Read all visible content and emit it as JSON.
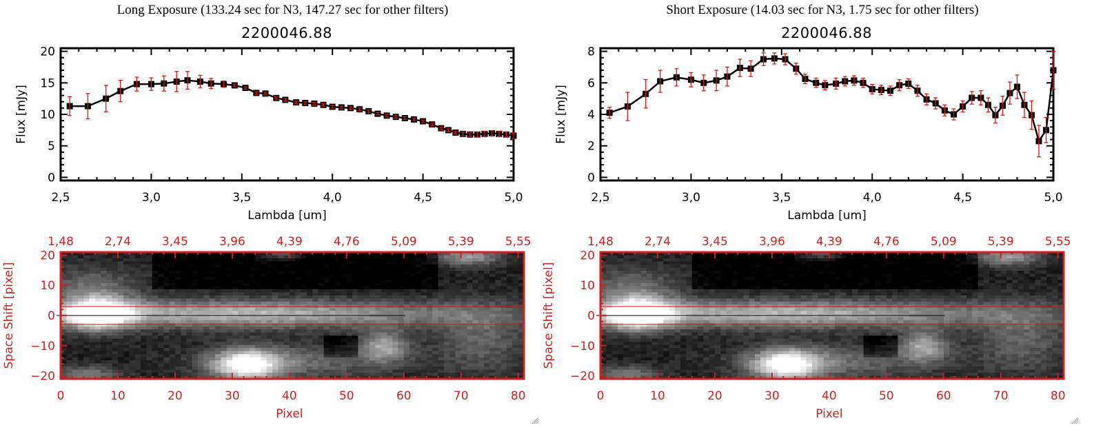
{
  "panels": [
    {
      "title": "Long Exposure (133.24 sec for N3, 147.27 sec for other filters)",
      "plot_title": "2200046.88"
    },
    {
      "title": "Short Exposure (14.03 sec for N3, 1.75 sec for other filters)",
      "plot_title": "2200046.88"
    }
  ],
  "colors": {
    "line": "#000000",
    "errorbar": "#e01010",
    "image_axis": "#cc2222",
    "aperture_line": "#e01010",
    "center_line": "#000000"
  },
  "chart_data": [
    {
      "type": "line",
      "title": "2200046.88",
      "xlabel": "Lambda [um]",
      "ylabel": "Flux [mJy]",
      "xlim": [
        2.5,
        5.0
      ],
      "ylim": [
        -0.5,
        20.5
      ],
      "xticks": [
        "2.5",
        "3.0",
        "3.5",
        "4.0",
        "4.5",
        "5.0"
      ],
      "yticks": [
        "0",
        "5",
        "10",
        "15",
        "20"
      ],
      "grid": false,
      "series": [
        {
          "name": "Long Exposure flux",
          "x": [
            2.55,
            2.65,
            2.75,
            2.83,
            2.92,
            3.0,
            3.07,
            3.14,
            3.2,
            3.27,
            3.33,
            3.4,
            3.46,
            3.52,
            3.58,
            3.63,
            3.69,
            3.74,
            3.8,
            3.85,
            3.9,
            3.95,
            4.0,
            4.05,
            4.1,
            4.15,
            4.2,
            4.25,
            4.3,
            4.35,
            4.4,
            4.45,
            4.5,
            4.55,
            4.6,
            4.64,
            4.68,
            4.72,
            4.76,
            4.8,
            4.84,
            4.88,
            4.92,
            4.96,
            5.0
          ],
          "y": [
            11.3,
            11.3,
            12.5,
            13.7,
            14.8,
            14.8,
            14.9,
            15.2,
            15.4,
            15.2,
            14.9,
            14.8,
            14.6,
            14.2,
            13.4,
            13.3,
            12.6,
            12.3,
            11.9,
            11.8,
            11.7,
            11.5,
            11.2,
            11.1,
            11.0,
            10.8,
            10.5,
            10.1,
            9.8,
            9.6,
            9.4,
            9.2,
            8.9,
            8.4,
            7.8,
            7.5,
            7.1,
            6.9,
            6.8,
            6.8,
            6.9,
            7.0,
            6.9,
            6.8,
            6.6
          ],
          "yerr": [
            1.5,
            2.0,
            2.1,
            1.7,
            1.1,
            1.0,
            1.2,
            1.6,
            1.4,
            1.0,
            0.8,
            0.5,
            0.2,
            0.2,
            0.2,
            0.2,
            0.2,
            0.2,
            0.2,
            0.2,
            0.2,
            0.2,
            0.2,
            0.2,
            0.2,
            0.2,
            0.2,
            0.2,
            0.2,
            0.2,
            0.2,
            0.2,
            0.2,
            0.2,
            0.2,
            0.2,
            0.2,
            0.3,
            0.3,
            0.4,
            0.4,
            0.4,
            0.4,
            0.4,
            0.5
          ]
        }
      ]
    },
    {
      "type": "line",
      "title": "2200046.88",
      "xlabel": "Lambda [um]",
      "ylabel": "Flux [mJy]",
      "xlim": [
        2.5,
        5.0
      ],
      "ylim": [
        -0.2,
        8.2
      ],
      "xticks": [
        "2.5",
        "3.0",
        "3.5",
        "4.0",
        "4.5",
        "5.0"
      ],
      "yticks": [
        "0",
        "2",
        "4",
        "6",
        "8"
      ],
      "grid": false,
      "series": [
        {
          "name": "Short Exposure flux",
          "x": [
            2.55,
            2.65,
            2.75,
            2.83,
            2.92,
            3.0,
            3.07,
            3.14,
            3.2,
            3.27,
            3.33,
            3.4,
            3.46,
            3.52,
            3.58,
            3.63,
            3.69,
            3.74,
            3.8,
            3.85,
            3.9,
            3.95,
            4.0,
            4.05,
            4.1,
            4.15,
            4.2,
            4.25,
            4.3,
            4.35,
            4.4,
            4.45,
            4.5,
            4.55,
            4.6,
            4.64,
            4.68,
            4.72,
            4.76,
            4.8,
            4.84,
            4.88,
            4.92,
            4.96,
            5.0
          ],
          "y": [
            4.1,
            4.5,
            5.3,
            6.1,
            6.35,
            6.2,
            6.0,
            6.15,
            6.4,
            6.95,
            6.9,
            7.5,
            7.55,
            7.5,
            6.9,
            6.25,
            6.0,
            5.85,
            5.95,
            6.1,
            6.15,
            6.0,
            5.6,
            5.55,
            5.5,
            5.85,
            5.95,
            5.5,
            4.95,
            4.7,
            4.25,
            4.0,
            4.5,
            5.05,
            5.05,
            4.6,
            3.95,
            4.55,
            5.35,
            5.75,
            4.6,
            3.95,
            2.3,
            3.0,
            6.8
          ],
          "yerr": [
            0.35,
            0.9,
            0.9,
            0.7,
            0.55,
            0.45,
            0.5,
            0.65,
            0.6,
            0.55,
            0.5,
            0.4,
            0.35,
            0.35,
            0.35,
            0.3,
            0.3,
            0.3,
            0.35,
            0.3,
            0.3,
            0.3,
            0.3,
            0.3,
            0.3,
            0.35,
            0.3,
            0.35,
            0.35,
            0.35,
            0.35,
            0.35,
            0.35,
            0.4,
            0.45,
            0.45,
            0.5,
            0.6,
            0.7,
            0.75,
            0.8,
            0.9,
            1.0,
            0.8,
            1.2
          ]
        }
      ]
    },
    {
      "type": "heatmap",
      "xlabel": "Pixel",
      "ylabel": "Space Shift [pixel]",
      "xlim": [
        0,
        81
      ],
      "ylim": [
        -21,
        21
      ],
      "xticks": [
        "0",
        "10",
        "20",
        "30",
        "40",
        "50",
        "60",
        "70",
        "80"
      ],
      "yticks": [
        "20",
        "10",
        "0",
        "-10",
        "-20"
      ],
      "top_ticks": [
        "1.48",
        "2.74",
        "3.45",
        "3.96",
        "4.39",
        "4.76",
        "5.09",
        "5.39",
        "5.55"
      ],
      "aperture_lines": [
        3,
        -3
      ],
      "center_line": 0,
      "colormap": "grayscale"
    },
    {
      "type": "heatmap",
      "xlabel": "Pixel",
      "ylabel": "Space Shift [pixel]",
      "xlim": [
        0,
        81
      ],
      "ylim": [
        -21,
        21
      ],
      "xticks": [
        "0",
        "10",
        "20",
        "30",
        "40",
        "50",
        "60",
        "70",
        "80"
      ],
      "yticks": [
        "20",
        "10",
        "0",
        "-10",
        "-20"
      ],
      "top_ticks": [
        "1.48",
        "2.74",
        "3.45",
        "3.96",
        "4.39",
        "4.76",
        "5.09",
        "5.39",
        "5.55"
      ],
      "aperture_lines": [
        3,
        -3
      ],
      "center_line": 0,
      "colormap": "grayscale"
    }
  ]
}
